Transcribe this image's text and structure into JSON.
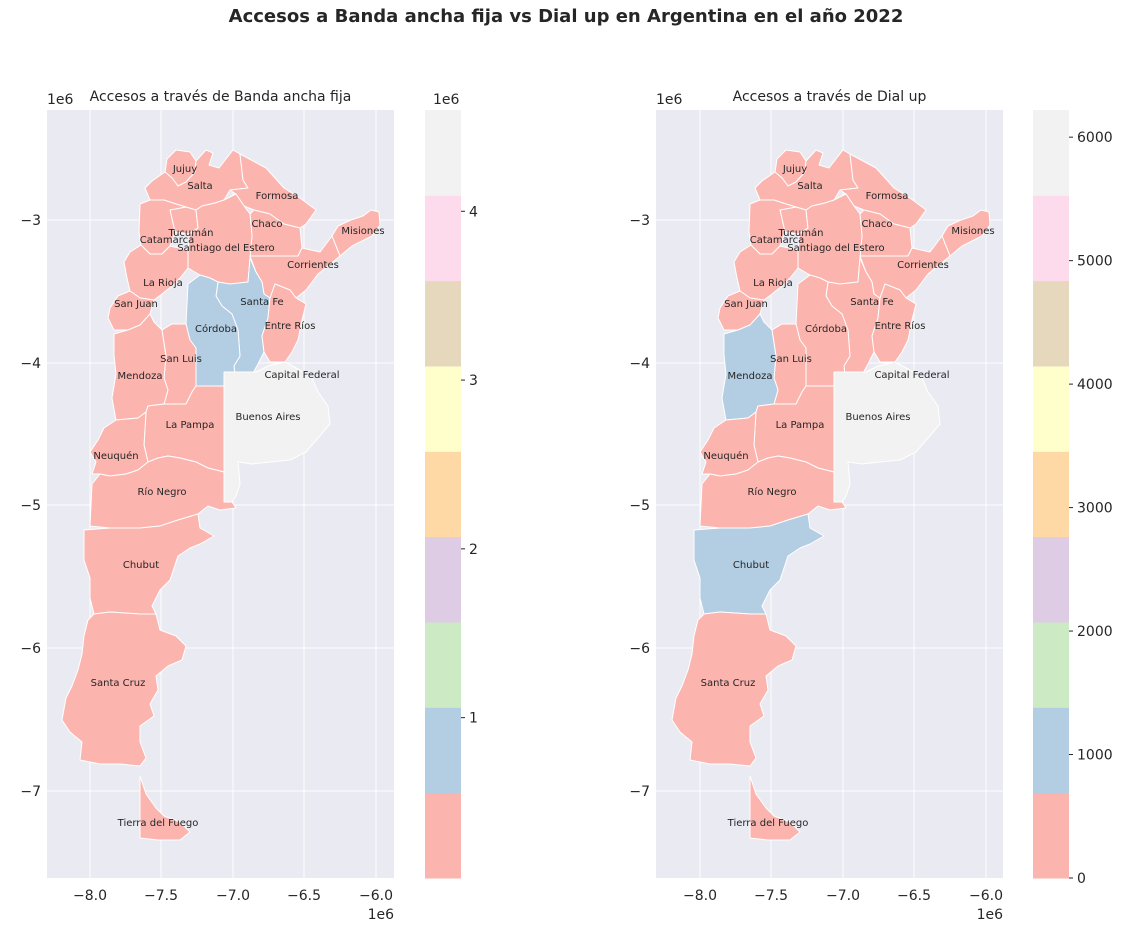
{
  "suptitle": "Accesos a Banda ancha fija vs Dial up en Argentina en el año 2022",
  "chart_data": [
    {
      "type": "choropleth",
      "title": "Accesos a través de Banda ancha fija",
      "x_ticks": [
        "−8.0",
        "−7.5",
        "−7.0",
        "−6.5",
        "−6.0"
      ],
      "y_ticks": [
        "−3",
        "−4",
        "−5",
        "−6",
        "−7"
      ],
      "x_offset": "1e6",
      "y_offset": "1e6",
      "colorbar": {
        "offset": "1e6",
        "ticks": [
          "1",
          "2",
          "3",
          "4"
        ],
        "tick_values": [
          1,
          2,
          3,
          4
        ],
        "range": [
          0.05,
          4.6
        ],
        "colors": [
          "#fbb4ae",
          "#b3cde3",
          "#ccebc5",
          "#decbe4",
          "#fed9a6",
          "#ffffcc",
          "#e5d8bd",
          "#fddaec",
          "#f2f2f2"
        ]
      },
      "provinces": [
        {
          "name": "Jujuy",
          "color": "#fbb4ae"
        },
        {
          "name": "Salta",
          "color": "#fbb4ae"
        },
        {
          "name": "Formosa",
          "color": "#fbb4ae"
        },
        {
          "name": "Chaco",
          "color": "#fbb4ae"
        },
        {
          "name": "Tucumán",
          "color": "#fbb4ae"
        },
        {
          "name": "Misiones",
          "color": "#fbb4ae"
        },
        {
          "name": "Catamarca",
          "color": "#fbb4ae"
        },
        {
          "name": "Santiago del Estero",
          "color": "#fbb4ae"
        },
        {
          "name": "Corrientes",
          "color": "#fbb4ae"
        },
        {
          "name": "La Rioja",
          "color": "#fbb4ae"
        },
        {
          "name": "San Juan",
          "color": "#fbb4ae"
        },
        {
          "name": "Santa Fe",
          "color": "#b3cde3"
        },
        {
          "name": "Córdoba",
          "color": "#b3cde3"
        },
        {
          "name": "Entre Ríos",
          "color": "#fbb4ae"
        },
        {
          "name": "San Luis",
          "color": "#fbb4ae"
        },
        {
          "name": "Mendoza",
          "color": "#fbb4ae"
        },
        {
          "name": "Capital Federal",
          "color": "#f2f2f2"
        },
        {
          "name": "Buenos Aires",
          "color": "#f2f2f2"
        },
        {
          "name": "La Pampa",
          "color": "#fbb4ae"
        },
        {
          "name": "Neuquén",
          "color": "#fbb4ae"
        },
        {
          "name": "Río Negro",
          "color": "#fbb4ae"
        },
        {
          "name": "Chubut",
          "color": "#fbb4ae"
        },
        {
          "name": "Santa Cruz",
          "color": "#fbb4ae"
        },
        {
          "name": "Tierra del Fuego",
          "color": "#fbb4ae"
        }
      ]
    },
    {
      "type": "choropleth",
      "title": "Accesos a través de Dial up",
      "x_ticks": [
        "−8.0",
        "−7.5",
        "−7.0",
        "−6.5",
        "−6.0"
      ],
      "y_ticks": [
        "−3",
        "−4",
        "−5",
        "−6",
        "−7"
      ],
      "x_offset": "1e6",
      "y_offset": "1e6",
      "colorbar": {
        "offset": "",
        "ticks": [
          "0",
          "1000",
          "2000",
          "3000",
          "4000",
          "5000",
          "6000"
        ],
        "tick_values": [
          0,
          1000,
          2000,
          3000,
          4000,
          5000,
          6000
        ],
        "range": [
          0,
          6220
        ],
        "colors": [
          "#fbb4ae",
          "#b3cde3",
          "#ccebc5",
          "#decbe4",
          "#fed9a6",
          "#ffffcc",
          "#e5d8bd",
          "#fddaec",
          "#f2f2f2"
        ]
      },
      "provinces": [
        {
          "name": "Jujuy",
          "color": "#fbb4ae"
        },
        {
          "name": "Salta",
          "color": "#fbb4ae"
        },
        {
          "name": "Formosa",
          "color": "#fbb4ae"
        },
        {
          "name": "Chaco",
          "color": "#fbb4ae"
        },
        {
          "name": "Tucumán",
          "color": "#fbb4ae"
        },
        {
          "name": "Misiones",
          "color": "#fbb4ae"
        },
        {
          "name": "Catamarca",
          "color": "#fbb4ae"
        },
        {
          "name": "Santiago del Estero",
          "color": "#fbb4ae"
        },
        {
          "name": "Corrientes",
          "color": "#fbb4ae"
        },
        {
          "name": "La Rioja",
          "color": "#fbb4ae"
        },
        {
          "name": "San Juan",
          "color": "#fbb4ae"
        },
        {
          "name": "Santa Fe",
          "color": "#fbb4ae"
        },
        {
          "name": "Córdoba",
          "color": "#fbb4ae"
        },
        {
          "name": "Entre Ríos",
          "color": "#fbb4ae"
        },
        {
          "name": "San Luis",
          "color": "#fbb4ae"
        },
        {
          "name": "Mendoza",
          "color": "#b3cde3"
        },
        {
          "name": "Capital Federal",
          "color": "#f2f2f2"
        },
        {
          "name": "Buenos Aires",
          "color": "#f2f2f2"
        },
        {
          "name": "La Pampa",
          "color": "#fbb4ae"
        },
        {
          "name": "Neuquén",
          "color": "#fbb4ae"
        },
        {
          "name": "Río Negro",
          "color": "#fbb4ae"
        },
        {
          "name": "Chubut",
          "color": "#b3cde3"
        },
        {
          "name": "Santa Cruz",
          "color": "#fbb4ae"
        },
        {
          "name": "Tierra del Fuego",
          "color": "#fbb4ae"
        }
      ]
    }
  ]
}
